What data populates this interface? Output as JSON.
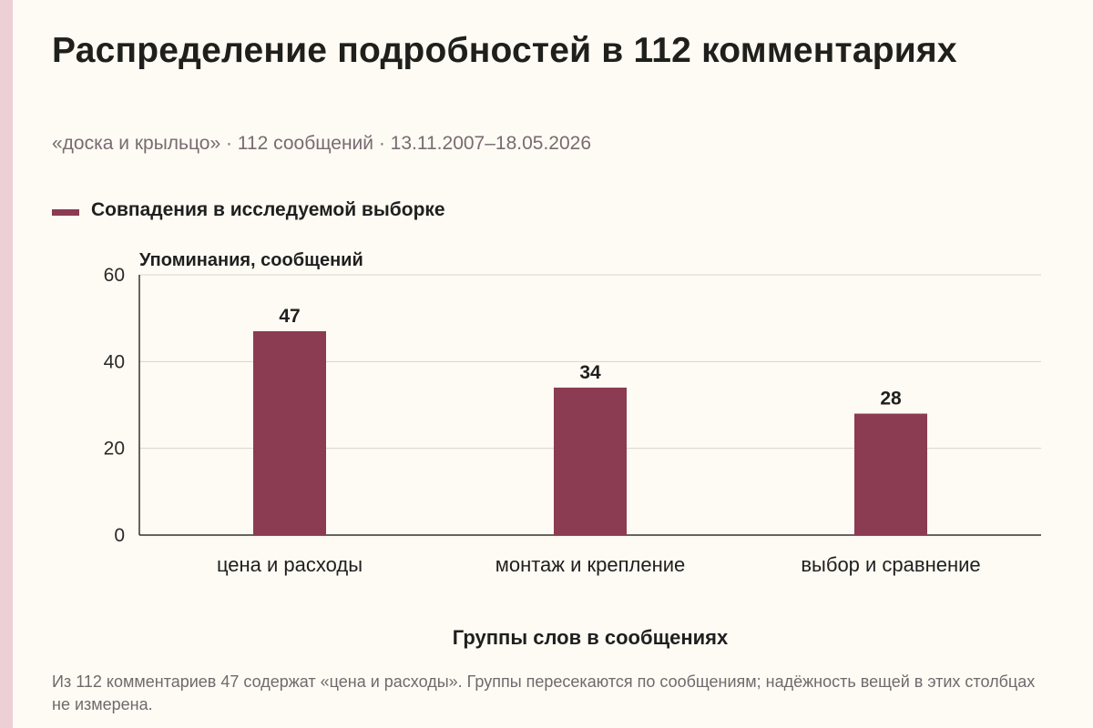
{
  "title": "Распределение подробностей в 112 комментариях",
  "subtitle": "«доска и крыльцо» · 112 сообщений · 13.11.2007–18.05.2026",
  "note": "Из 112 комментариев 47 содержат «цена и расходы». Группы пересекаются по сообщениям; надёжность вещей в этих столбцах не измерена.",
  "colors": {
    "bar": "#8b3b52",
    "background": "#fdfbf3",
    "grid": "#d8d4cc",
    "axis": "#333333",
    "accent_strip": "#ecd0d6"
  },
  "chart_data": {
    "type": "bar",
    "categories": [
      "цена и расходы",
      "монтаж и крепление",
      "выбор и сравнение"
    ],
    "series": [
      {
        "name": "Совпадения в исследуемой выборке",
        "values": [
          47,
          34,
          28
        ]
      }
    ],
    "data_labels": [
      "47",
      "34",
      "28"
    ],
    "xlabel": "Группы слов в сообщениях",
    "ylabel": "Упоминания, сообщений",
    "ylim": [
      0,
      60
    ],
    "yticks": [
      0,
      20,
      40,
      60
    ],
    "ytick_labels": [
      "0",
      "20",
      "40",
      "60"
    ],
    "grid": true,
    "legend_position": "top-left"
  }
}
